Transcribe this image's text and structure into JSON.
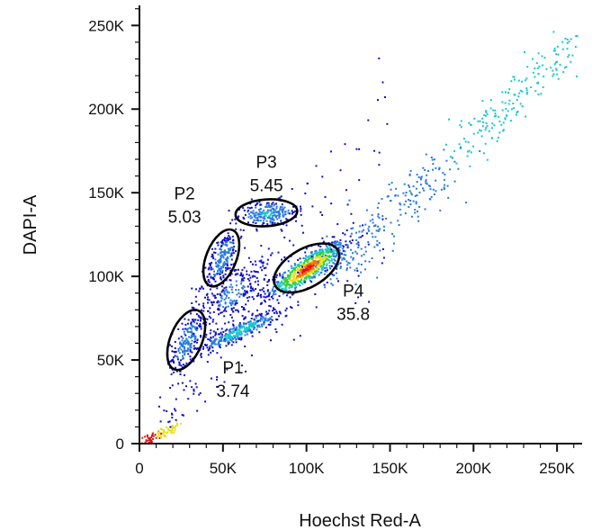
{
  "chart_data": {
    "type": "scatter",
    "style": "density-dot-plot",
    "xlabel": "Hoechst Red-A",
    "ylabel": "DAPI-A",
    "xlim": [
      0,
      265000
    ],
    "ylim": [
      0,
      262000
    ],
    "x_ticks": [
      {
        "value": 0,
        "label": "0"
      },
      {
        "value": 50000,
        "label": "50K"
      },
      {
        "value": 100000,
        "label": "100K"
      },
      {
        "value": 150000,
        "label": "150K"
      },
      {
        "value": 200000,
        "label": "200K"
      },
      {
        "value": 250000,
        "label": "250K"
      }
    ],
    "y_ticks": [
      {
        "value": 0,
        "label": "0"
      },
      {
        "value": 50000,
        "label": "50K"
      },
      {
        "value": 100000,
        "label": "100K"
      },
      {
        "value": 150000,
        "label": "150K"
      },
      {
        "value": 200000,
        "label": "200K"
      },
      {
        "value": 250000,
        "label": "250K"
      }
    ],
    "density_colors": [
      "#1010c8",
      "#2a7ae0",
      "#19c8d0",
      "#30d040",
      "#e8e020",
      "#f07010",
      "#e01010"
    ],
    "gates": [
      {
        "name": "P1",
        "value": "3.74",
        "cx": 28000,
        "cy": 62000,
        "rx": 19000,
        "ry": 9500,
        "angle": -68,
        "label_x": 56000,
        "label_y": 42000
      },
      {
        "name": "P2",
        "value": "5.03",
        "cx": 49000,
        "cy": 111000,
        "rx": 18000,
        "ry": 9000,
        "angle": -68,
        "label_x": 27000,
        "label_y": 146000
      },
      {
        "name": "P3",
        "value": "5.45",
        "cx": 76000,
        "cy": 138000,
        "rx": 18500,
        "ry": 8000,
        "angle": -4,
        "label_x": 76000,
        "label_y": 165000
      },
      {
        "name": "P4",
        "value": "35.8",
        "cx": 100000,
        "cy": 105000,
        "rx": 21500,
        "ry": 11500,
        "angle": -30,
        "label_x": 128000,
        "label_y": 88000
      }
    ]
  }
}
